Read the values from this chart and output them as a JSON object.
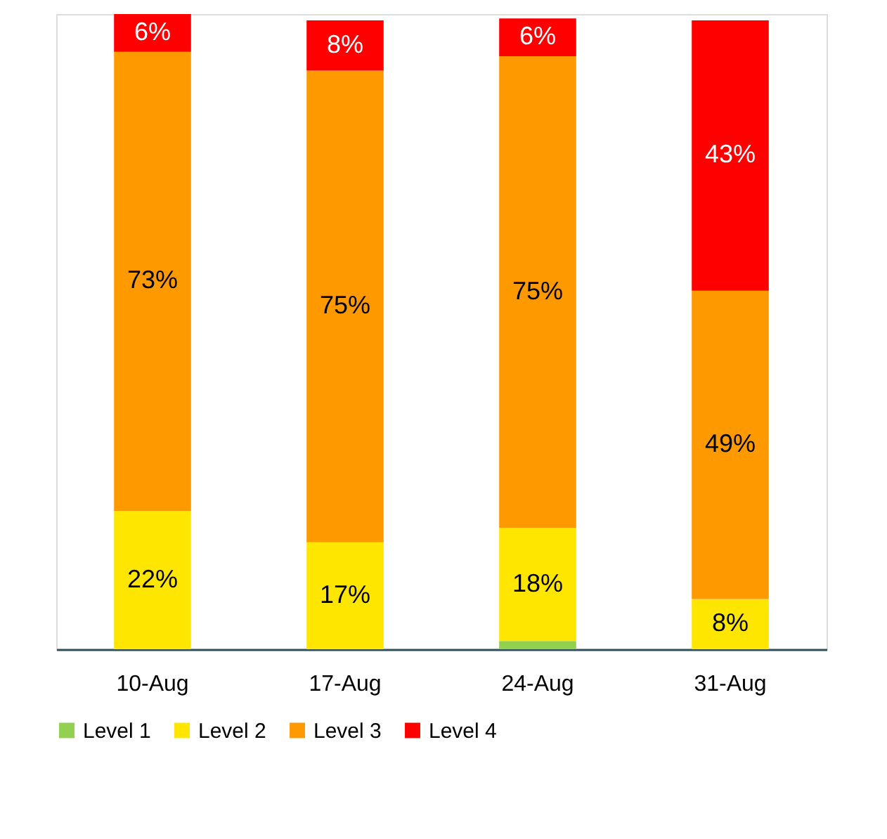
{
  "chart_data": {
    "type": "bar",
    "stacked": true,
    "categories": [
      "10-Aug",
      "17-Aug",
      "24-Aug",
      "31-Aug"
    ],
    "series": [
      {
        "name": "Level 1",
        "color": "#92d050",
        "values": [
          null,
          null,
          1.3,
          null
        ],
        "value_labels": [
          null,
          null,
          null,
          null
        ]
      },
      {
        "name": "Level 2",
        "color": "#ffe600",
        "values": [
          22,
          17,
          18,
          8
        ],
        "value_labels": [
          "22%",
          "17%",
          "18%",
          "8%"
        ]
      },
      {
        "name": "Level 3",
        "color": "#ff9900",
        "values": [
          73,
          75,
          75,
          49
        ],
        "value_labels": [
          "73%",
          "75%",
          "75%",
          "49%"
        ]
      },
      {
        "name": "Level 4",
        "color": "#ff0000",
        "values": [
          6,
          8,
          6,
          43
        ],
        "value_labels": [
          "6%",
          "8%",
          "6%",
          "43%"
        ]
      }
    ],
    "legend": "bottom"
  }
}
